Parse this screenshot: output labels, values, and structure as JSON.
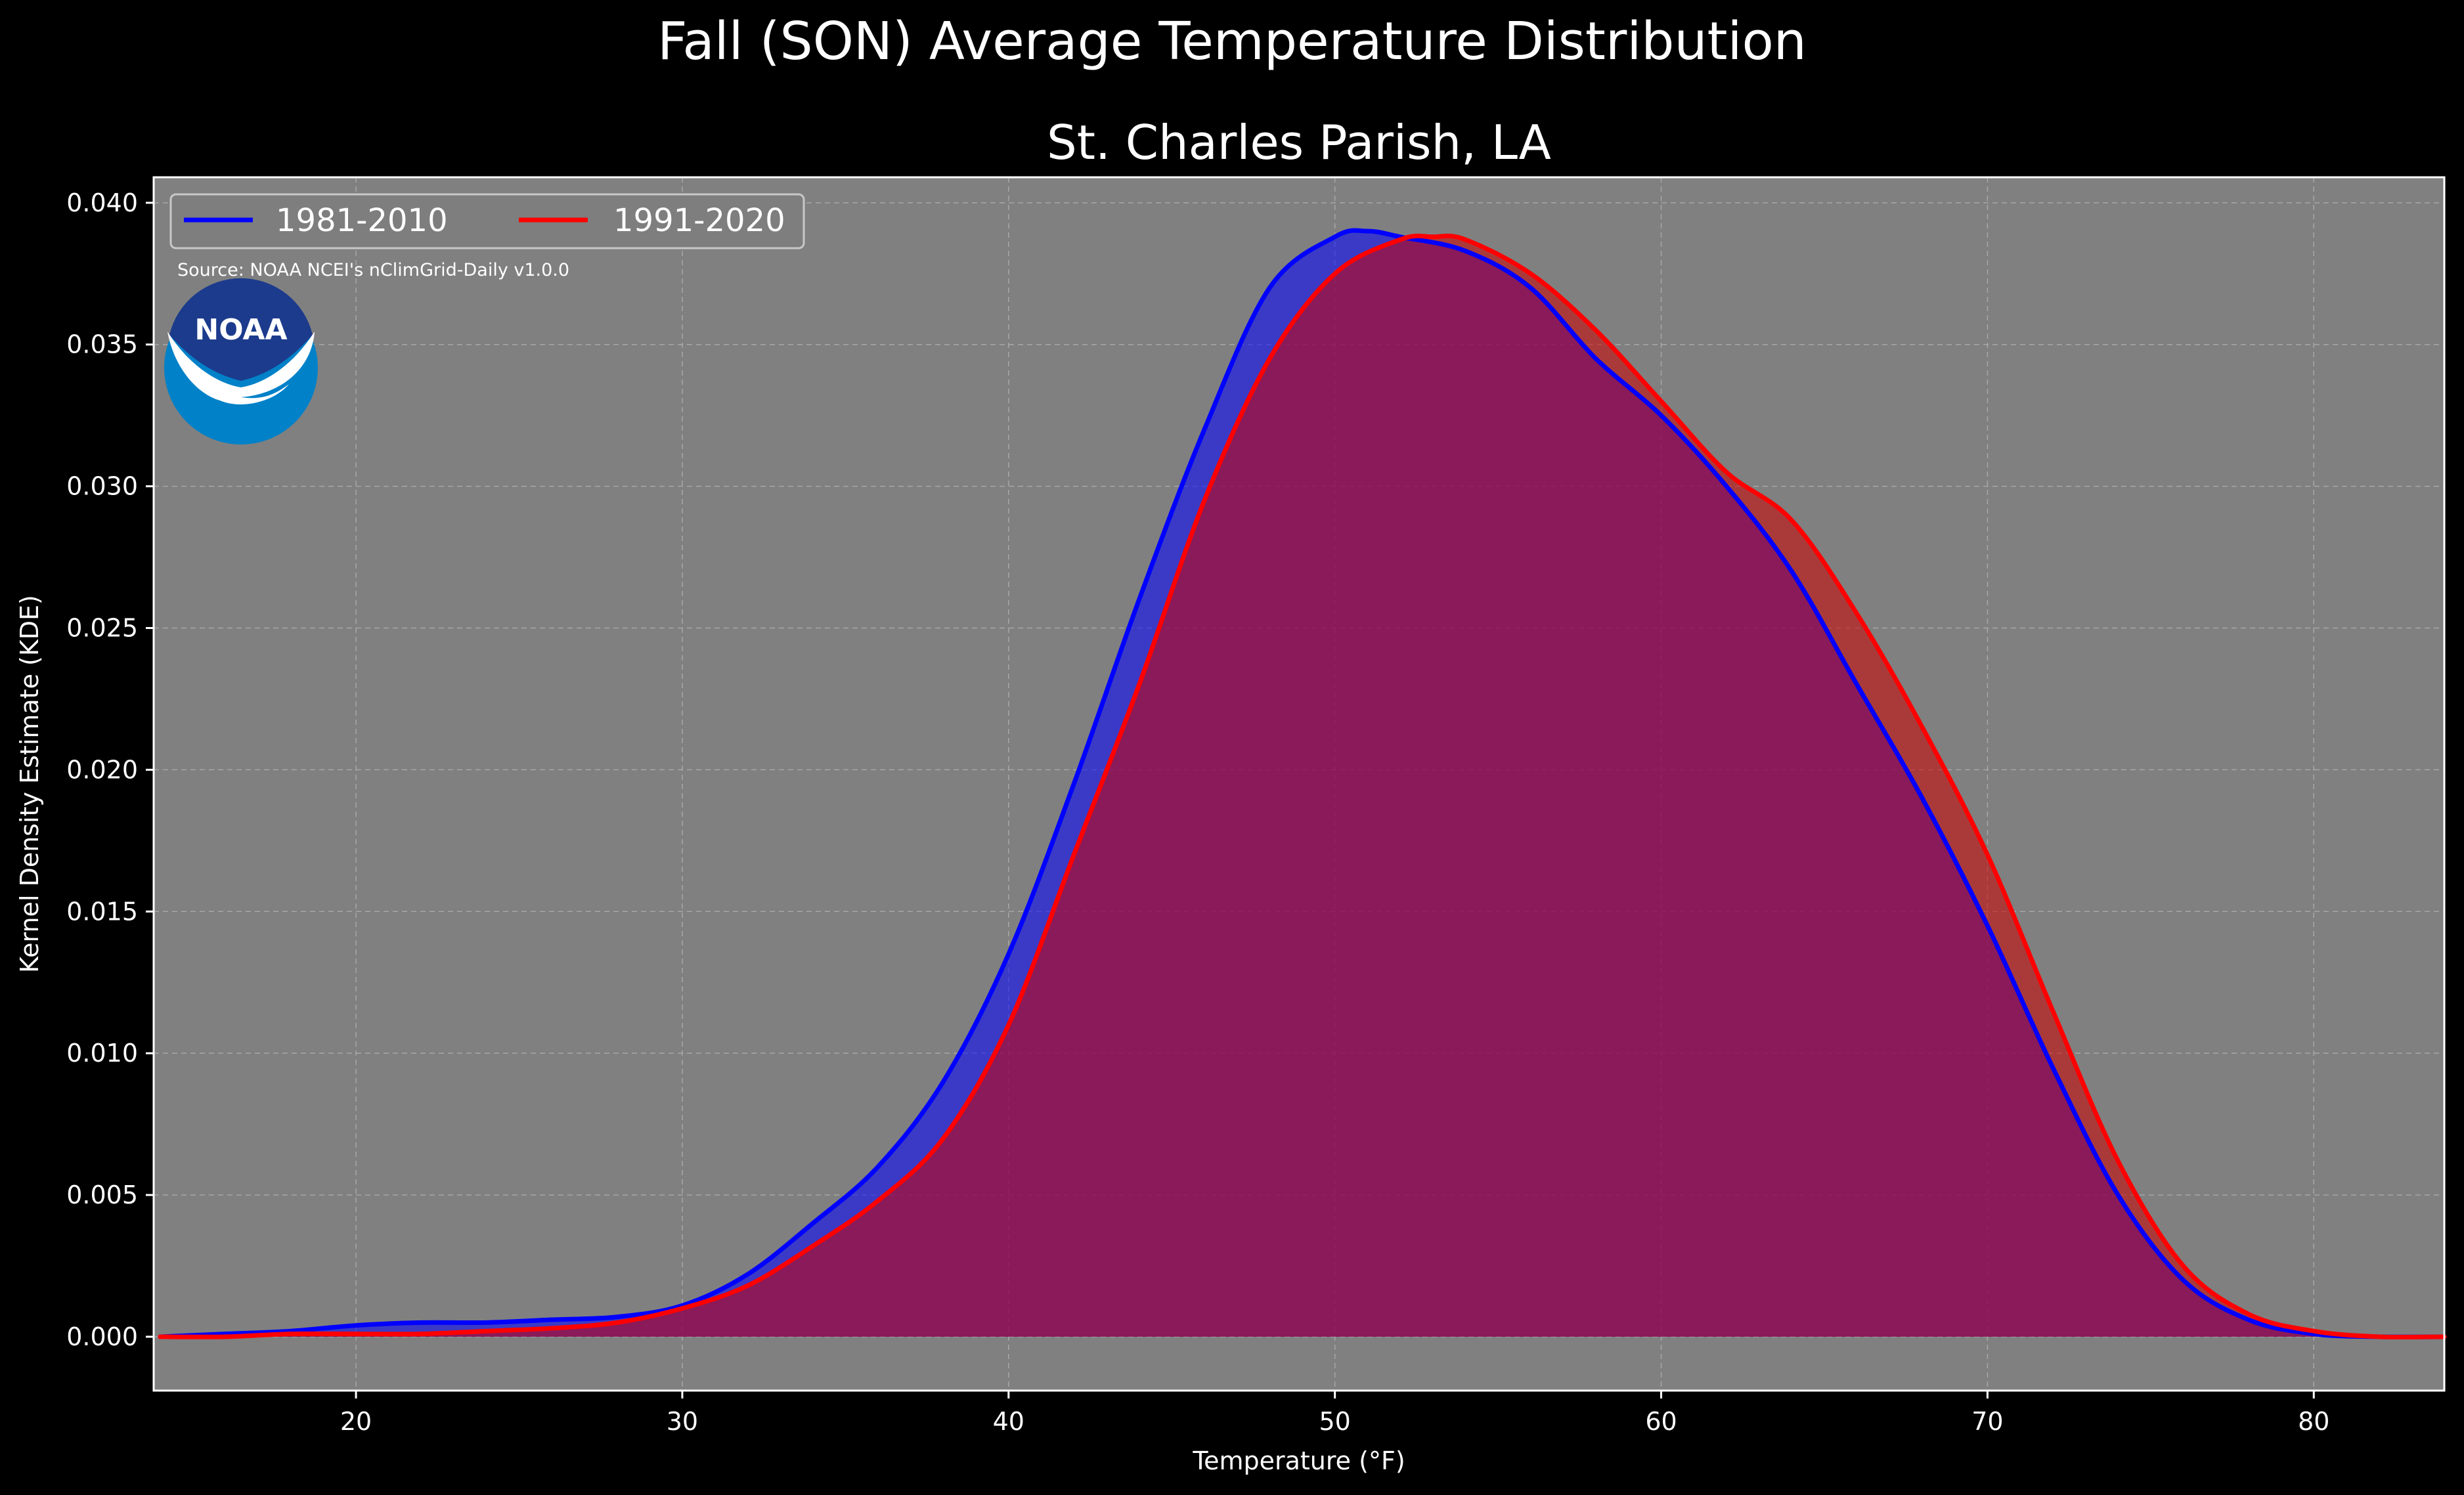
{
  "figure": {
    "suptitle": "Fall (SON) Average Temperature Distribution",
    "subtitle": "St. Charles Parish, LA",
    "source": "Source: NOAA NCEI's nClimGrid-Daily v1.0.0",
    "logo_text": "NOAA",
    "colors": {
      "background": "#000000",
      "plot_background": "#808080",
      "grid": "#b8b8b8",
      "text": "#ffffff",
      "logo_outer": "#0081c8",
      "logo_inner": "#1c3b8c"
    }
  },
  "chart_data": {
    "type": "area",
    "title": "St. Charles Parish, LA",
    "xlabel": "Temperature (°F)",
    "ylabel": "Kernel Density Estimate (KDE)",
    "xlim": [
      13.8,
      84.0
    ],
    "ylim": [
      -0.0019,
      0.0409
    ],
    "xticks": [
      20,
      30,
      40,
      50,
      60,
      70,
      80
    ],
    "yticks": [
      0.0,
      0.005,
      0.01,
      0.015,
      0.02,
      0.025,
      0.03,
      0.035,
      0.04
    ],
    "ytick_labels": [
      "0.000",
      "0.005",
      "0.010",
      "0.015",
      "0.020",
      "0.025",
      "0.030",
      "0.035",
      "0.040"
    ],
    "grid": true,
    "legend": {
      "placement": "top-left",
      "columns": 2
    },
    "series": [
      {
        "name": "1981-2010",
        "color": "#0000ff",
        "fill_color": "#0000ff",
        "x": [
          14,
          16,
          18,
          20,
          22,
          24,
          26,
          28,
          30,
          32,
          34,
          36,
          38,
          40,
          42,
          44,
          46,
          48,
          50,
          51,
          52,
          54,
          56,
          58,
          60,
          62,
          64,
          66,
          68,
          70,
          72,
          74,
          76,
          78,
          80,
          82,
          84
        ],
        "values": [
          0.0,
          0.0001,
          0.0002,
          0.0004,
          0.0005,
          0.0005,
          0.0006,
          0.0007,
          0.0011,
          0.0022,
          0.004,
          0.006,
          0.009,
          0.0135,
          0.0195,
          0.026,
          0.032,
          0.037,
          0.0388,
          0.039,
          0.0388,
          0.0383,
          0.037,
          0.0345,
          0.0325,
          0.03,
          0.027,
          0.023,
          0.019,
          0.0145,
          0.0095,
          0.005,
          0.002,
          0.0006,
          0.0001,
          0.0,
          0.0
        ]
      },
      {
        "name": "1991-2020",
        "color": "#ff0000",
        "fill_color": "#cc0000",
        "x": [
          14,
          16,
          18,
          20,
          22,
          24,
          26,
          28,
          30,
          32,
          34,
          36,
          38,
          40,
          42,
          44,
          46,
          48,
          50,
          52,
          53,
          54,
          56,
          58,
          60,
          62,
          64,
          66,
          68,
          70,
          72,
          74,
          76,
          78,
          80,
          82,
          84
        ],
        "values": [
          0.0,
          0.0,
          0.0001,
          0.0001,
          0.0001,
          0.0002,
          0.0003,
          0.0005,
          0.001,
          0.0018,
          0.0032,
          0.0048,
          0.007,
          0.011,
          0.017,
          0.023,
          0.0295,
          0.0345,
          0.0375,
          0.0387,
          0.0388,
          0.0387,
          0.0375,
          0.0355,
          0.033,
          0.0305,
          0.0288,
          0.0255,
          0.0215,
          0.017,
          0.0115,
          0.0062,
          0.0025,
          0.0008,
          0.0002,
          0.0,
          0.0
        ]
      }
    ]
  }
}
